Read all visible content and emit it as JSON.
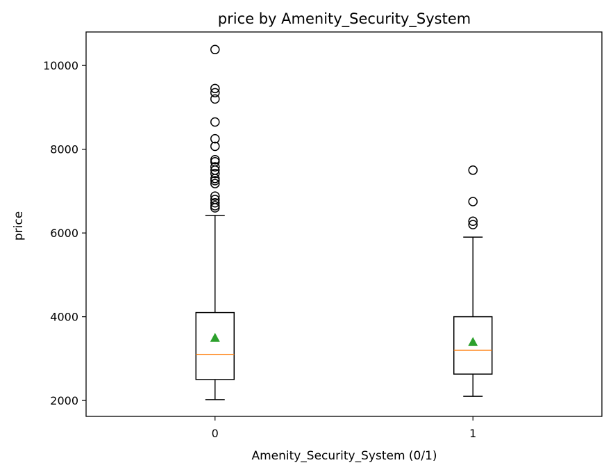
{
  "chart_data": {
    "type": "box",
    "title": "price by Amenity_Security_System",
    "xlabel": "Amenity_Security_System (0/1)",
    "ylabel": "price",
    "categories": [
      "0",
      "1"
    ],
    "ylim": [
      1620,
      10800
    ],
    "yticks": [
      2000,
      4000,
      6000,
      8000,
      10000
    ],
    "grid": false,
    "legend": "none",
    "colors": {
      "box": "#000000",
      "median": "#ff7f0e",
      "mean": "#2ca02c",
      "flier": "#000000"
    },
    "groups": [
      {
        "category": "0",
        "whisker_low": 2020,
        "q1": 2500,
        "median": 3100,
        "q3": 4100,
        "whisker_high": 6420,
        "mean": 3500,
        "fliers": [
          10380,
          9450,
          9350,
          9200,
          8650,
          8250,
          8070,
          7750,
          7700,
          7580,
          7500,
          7420,
          7300,
          7250,
          7180,
          6880,
          6800,
          6720,
          6650,
          6600
        ]
      },
      {
        "category": "1",
        "whisker_low": 2100,
        "q1": 2630,
        "median": 3200,
        "q3": 4000,
        "whisker_high": 5900,
        "mean": 3400,
        "fliers": [
          7500,
          6750,
          6280,
          6200
        ]
      }
    ]
  }
}
